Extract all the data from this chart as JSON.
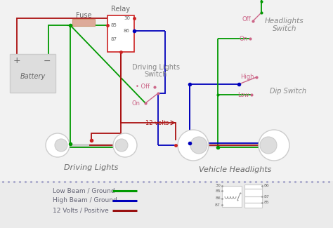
{
  "bg_color": "#f2f2f2",
  "legend_bg": "#ebebeb",
  "colors": {
    "green": "#009900",
    "blue": "#0000bb",
    "red": "#aa1111",
    "dark_red": "#991111",
    "pink": "#cc6688",
    "gray": "#999999",
    "dark_gray": "#666666",
    "light_gray": "#cccccc",
    "text": "#888888",
    "relay_red": "#cc2222"
  },
  "legend": [
    {
      "label": "Low Beam / Ground",
      "color": "#009900"
    },
    {
      "label": "High Beam / Ground",
      "color": "#0000bb"
    },
    {
      "label": "12 Volts / Positive",
      "color": "#991111"
    }
  ]
}
